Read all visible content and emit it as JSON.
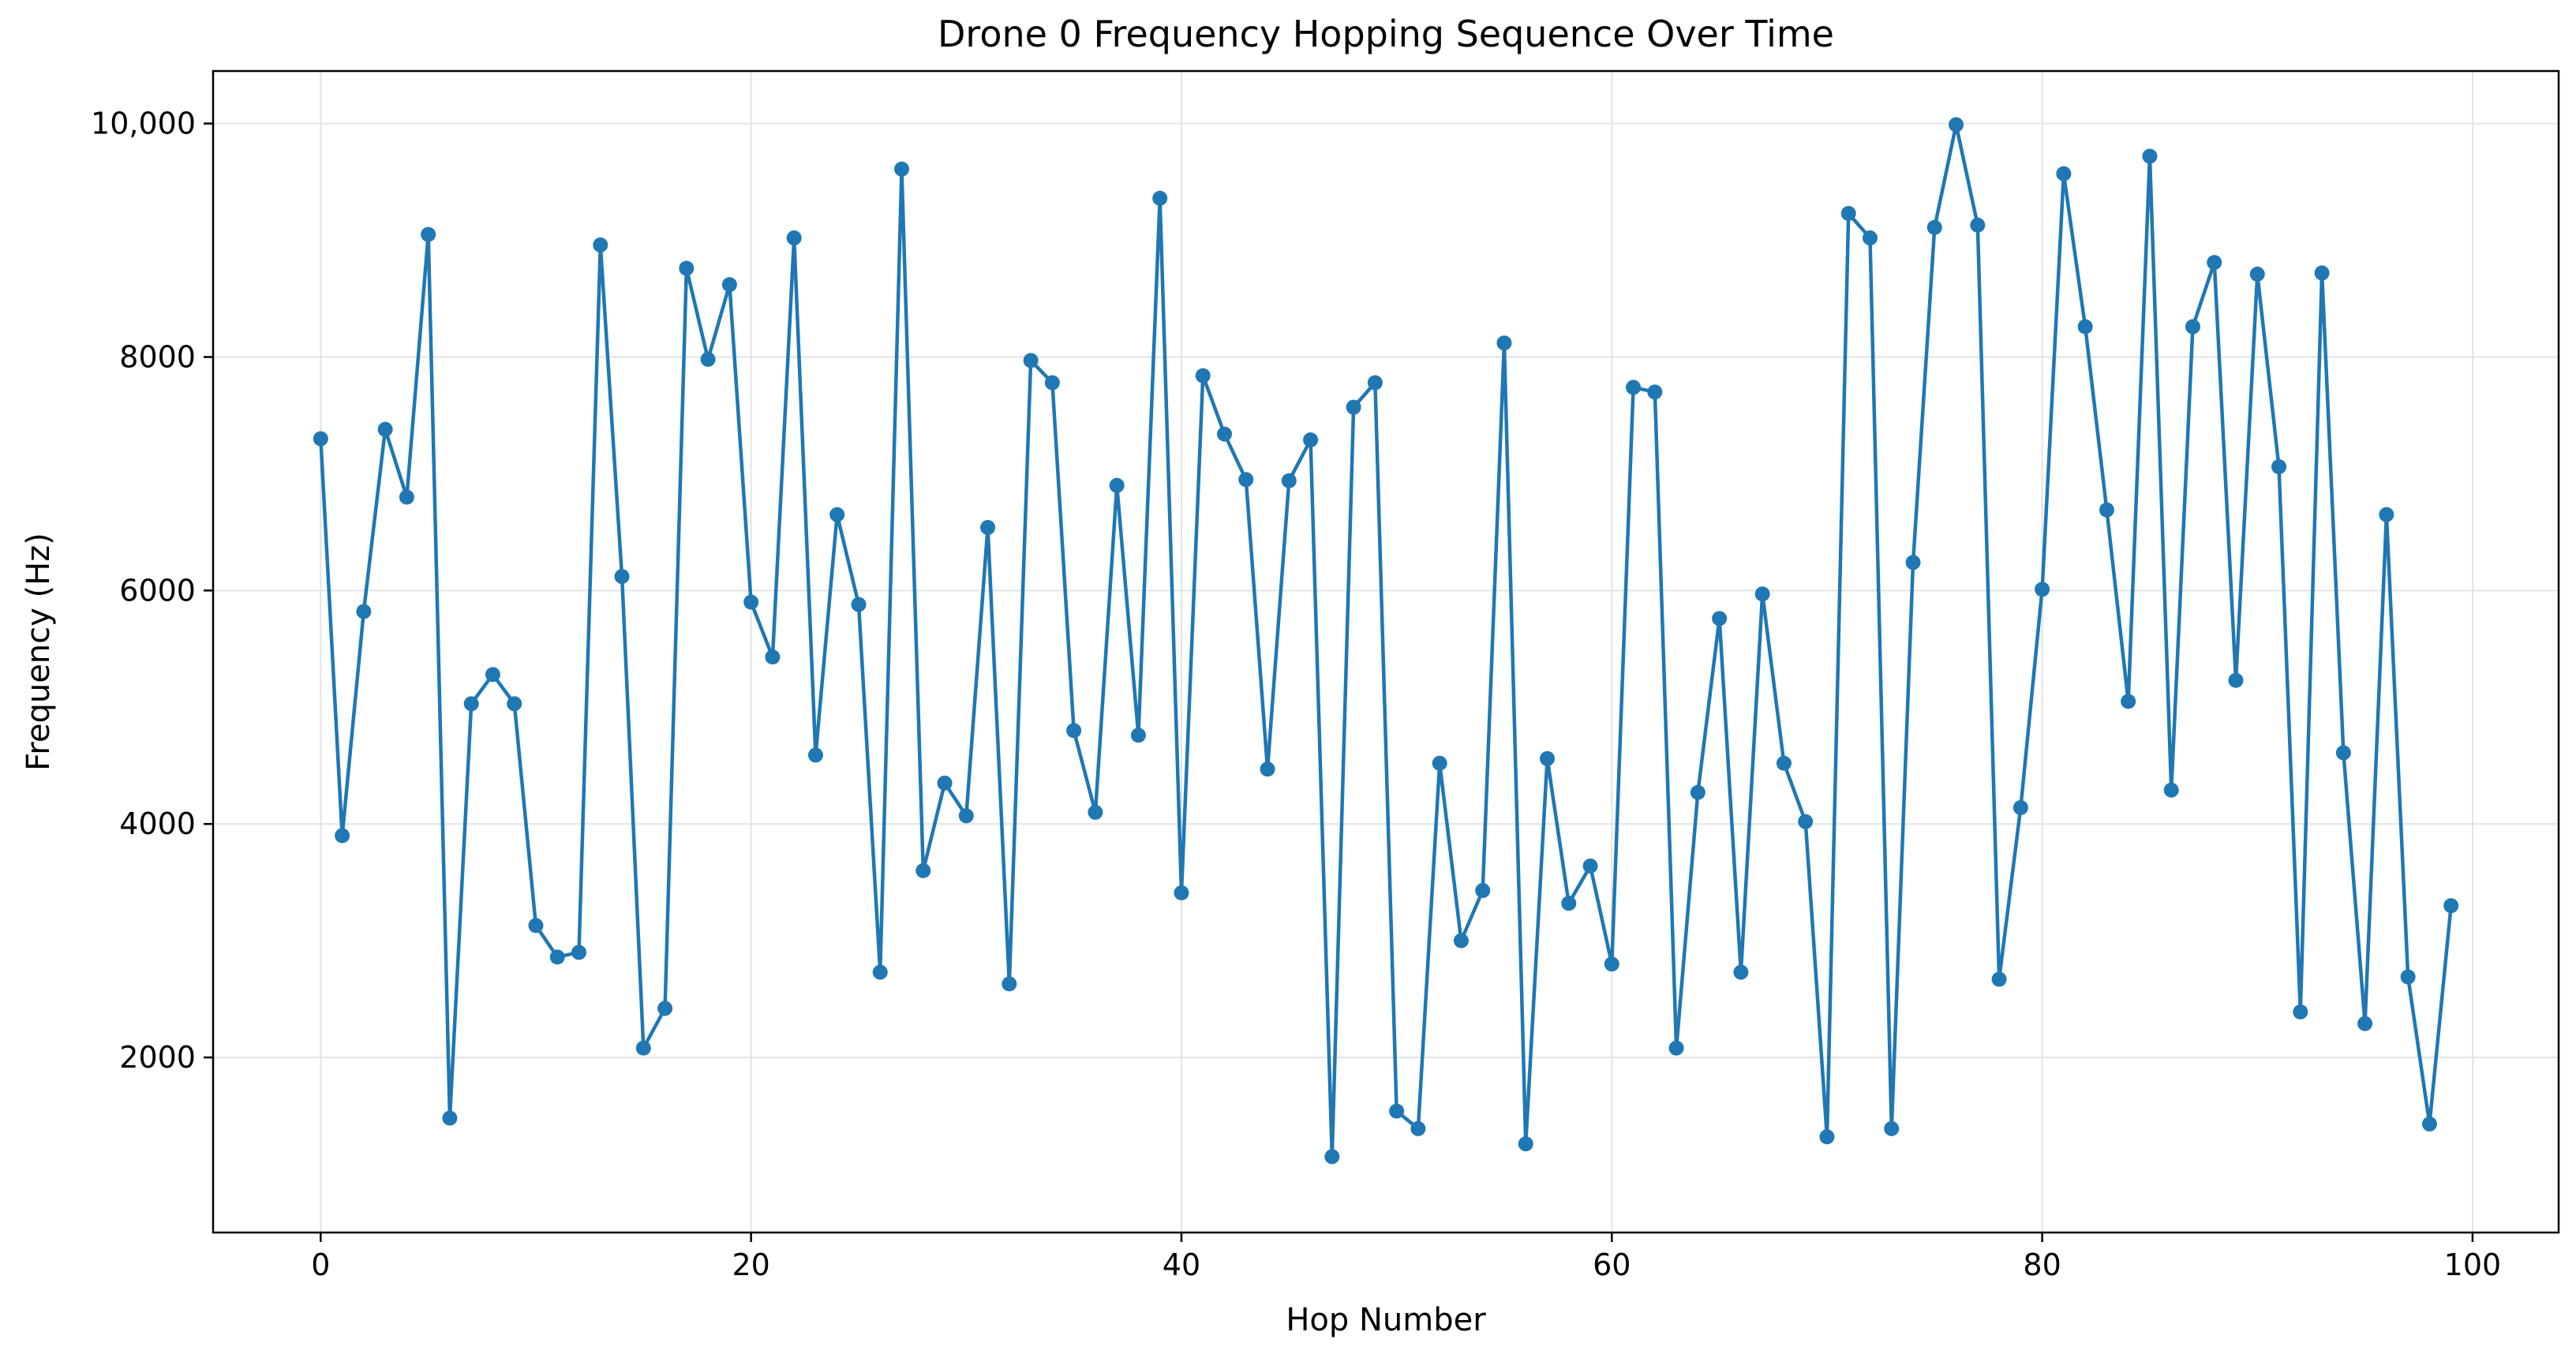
{
  "chart_data": {
    "type": "line",
    "title": "Drone 0 Frequency Hopping Sequence Over Time",
    "xlabel": "Hop Number",
    "ylabel": "Frequency (Hz)",
    "xlim": [
      -5,
      104
    ],
    "ylim": [
      500,
      10450
    ],
    "grid": true,
    "legend": "none",
    "xticks": [
      0,
      20,
      40,
      60,
      80,
      100
    ],
    "xtick_labels": [
      "0",
      "20",
      "40",
      "60",
      "80",
      "100"
    ],
    "yticks": [
      2000,
      4000,
      6000,
      8000,
      10000
    ],
    "ytick_labels": [
      "2000",
      "4000",
      "6000",
      "8000",
      "10,000"
    ],
    "series": [
      {
        "name": "Drone 0",
        "color": "#1f77b4",
        "marker": "circle",
        "x": [
          0,
          1,
          2,
          3,
          4,
          5,
          6,
          7,
          8,
          9,
          10,
          11,
          12,
          13,
          14,
          15,
          16,
          17,
          18,
          19,
          20,
          21,
          22,
          23,
          24,
          25,
          26,
          27,
          28,
          29,
          30,
          31,
          32,
          33,
          34,
          35,
          36,
          37,
          38,
          39,
          40,
          41,
          42,
          43,
          44,
          45,
          46,
          47,
          48,
          49,
          50,
          51,
          52,
          53,
          54,
          55,
          56,
          57,
          58,
          59,
          60,
          61,
          62,
          63,
          64,
          65,
          66,
          67,
          68,
          69,
          70,
          71,
          72,
          73,
          74,
          75,
          76,
          77,
          78,
          79,
          80,
          81,
          82,
          83,
          84,
          85,
          86,
          87,
          88,
          89,
          90,
          91,
          92,
          93,
          94,
          95,
          96,
          97,
          98,
          99
        ],
        "values": [
          7300,
          3900,
          5820,
          7380,
          6800,
          9050,
          1480,
          5030,
          5280,
          5030,
          3130,
          2860,
          2900,
          8960,
          6120,
          2080,
          2420,
          8760,
          7980,
          8620,
          5900,
          5430,
          9020,
          4590,
          6650,
          5880,
          2730,
          9610,
          3600,
          4350,
          4070,
          6540,
          2630,
          7970,
          7780,
          4800,
          4100,
          6900,
          4760,
          9360,
          3410,
          7840,
          7340,
          6950,
          4470,
          6940,
          7290,
          1150,
          7570,
          7780,
          1540,
          1390,
          4520,
          3000,
          3430,
          8120,
          1260,
          4560,
          3320,
          3640,
          2800,
          7740,
          7700,
          2080,
          4270,
          5760,
          2730,
          5970,
          4520,
          4020,
          1320,
          9230,
          9020,
          1390,
          6240,
          9110,
          9990,
          9130,
          2670,
          4140,
          6010,
          9570,
          8260,
          6690,
          5050,
          9720,
          4290,
          8260,
          8810,
          5230,
          8710,
          7060,
          2390,
          8720,
          4610,
          2290,
          6650,
          2690,
          1430,
          3300
        ]
      }
    ]
  }
}
